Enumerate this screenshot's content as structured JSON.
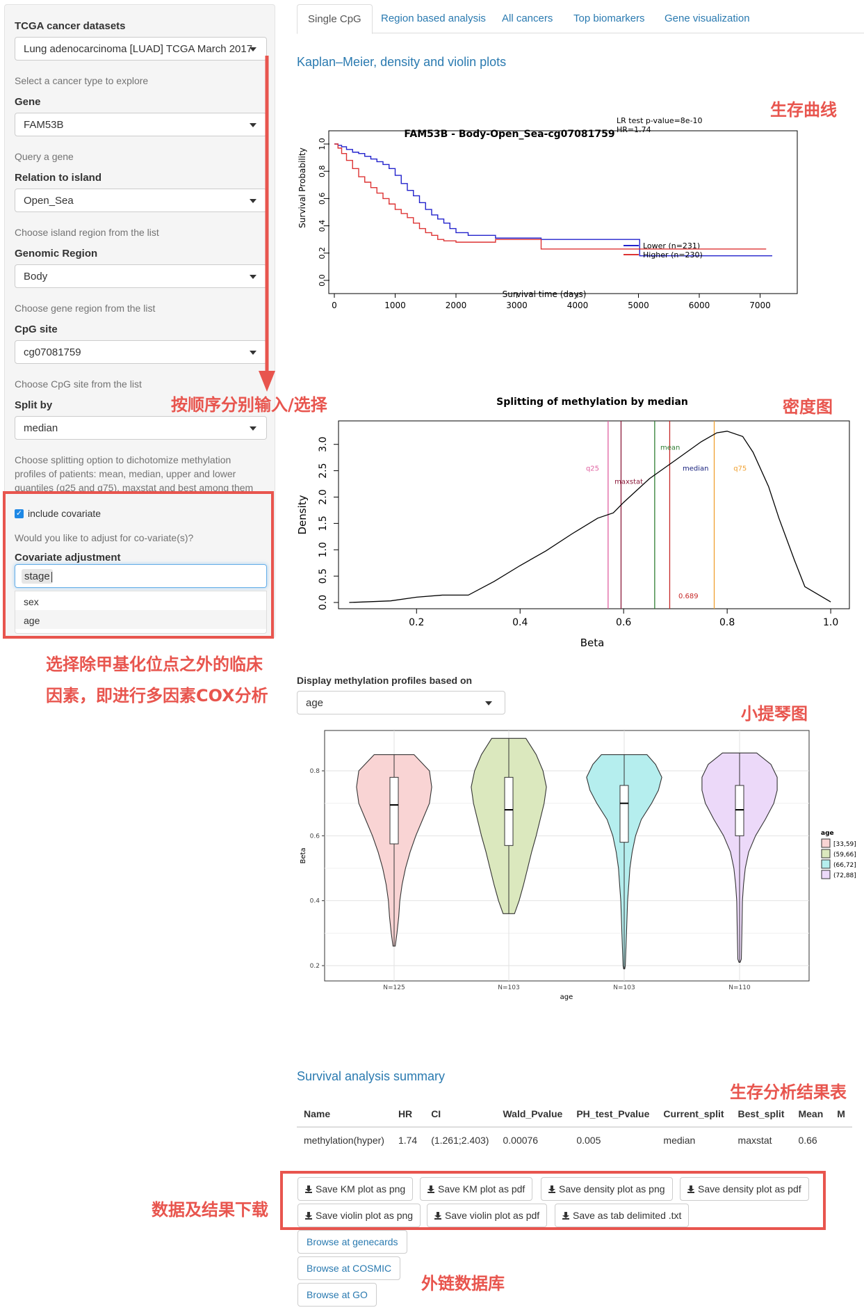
{
  "sidebar": {
    "dataset_label": "TCGA cancer datasets",
    "dataset_value": "Lung adenocarcinoma [LUAD] TCGA March 2017",
    "dataset_help": "Select a cancer type to explore",
    "gene_label": "Gene",
    "gene_value": "FAM53B",
    "gene_help": "Query a gene",
    "island_label": "Relation to island",
    "island_value": "Open_Sea",
    "island_help": "Choose island region from the list",
    "region_label": "Genomic Region",
    "region_value": "Body",
    "region_help": "Choose gene region from the list",
    "cpg_label": "CpG site",
    "cpg_value": "cg07081759",
    "cpg_help": "Choose CpG site from the list",
    "split_label": "Split by",
    "split_value": "median",
    "split_help": "Choose splitting option to dichotomize methylation profiles of patients: mean, median, upper and lower quantiles (q25 and q75), maxstat and best among them",
    "covariate_checkbox": "include covariate",
    "covariate_checked": true,
    "covariate_help": "Would you like to adjust for co-variate(s)?",
    "covariate_label": "Covariate adjustment",
    "covariate_chip": "stage",
    "covariate_options": [
      "sex",
      "age"
    ]
  },
  "annotations": {
    "sequence": "按顺序分别输入/选择",
    "clinical_line1": "选择除甲基化位点之外的临床",
    "clinical_line2": "因素，即进行多因素COX分析",
    "survival_curve": "生存曲线",
    "density": "密度图",
    "violin": "小提琴图",
    "summary_table": "生存分析结果表",
    "downloads": "数据及结果下载",
    "external_db": "外链数据库"
  },
  "tabs": [
    "Single CpG",
    "Region based analysis",
    "All cancers",
    "Top biomarkers",
    "Gene visualization"
  ],
  "main": {
    "heading": "Kaplan–Meier, density and violin plots",
    "violin_select_label": "Display methylation profiles based on",
    "violin_select_value": "age",
    "summary_heading": "Survival analysis summary"
  },
  "chart_data": [
    {
      "type": "line",
      "title": "FAM53B - Body-Open_Sea-cg07081759",
      "xlabel": "Survival time (days)",
      "ylabel": "Survival Probability",
      "xlim": [
        0,
        7200
      ],
      "ylim": [
        0,
        1
      ],
      "xticks": [
        "0",
        "1000",
        "2000",
        "3000",
        "4000",
        "5000",
        "6000",
        "7000"
      ],
      "yticks": [
        "0.0",
        "0.2",
        "0.4",
        "0.6",
        "0.8",
        "1.0"
      ],
      "annotation_line1": "LR test p-value=8e-10",
      "annotation_line2": "HR=1.74",
      "legend_position": "bottom-right",
      "series": [
        {
          "name": "Lower (n=231)",
          "color": "#2222cc",
          "x": [
            0,
            60,
            120,
            200,
            300,
            400,
            500,
            600,
            700,
            800,
            900,
            1000,
            1100,
            1200,
            1300,
            1400,
            1500,
            1600,
            1700,
            1800,
            1900,
            2000,
            2200,
            2400,
            2600,
            2650,
            3000,
            3200,
            3350,
            3400,
            5000,
            5020,
            7200
          ],
          "y": [
            1.0,
            0.99,
            0.98,
            0.96,
            0.94,
            0.93,
            0.91,
            0.89,
            0.87,
            0.85,
            0.82,
            0.77,
            0.71,
            0.66,
            0.62,
            0.57,
            0.52,
            0.48,
            0.45,
            0.42,
            0.38,
            0.35,
            0.33,
            0.33,
            0.33,
            0.31,
            0.31,
            0.31,
            0.31,
            0.3,
            0.3,
            0.18,
            0.18
          ]
        },
        {
          "name": "Higher (n=230)",
          "color": "#dd3333",
          "x": [
            0,
            60,
            120,
            200,
            300,
            400,
            500,
            600,
            700,
            800,
            900,
            1000,
            1100,
            1200,
            1300,
            1400,
            1500,
            1600,
            1700,
            1800,
            2000,
            2200,
            2400,
            2600,
            2650,
            3000,
            3200,
            3350,
            3400,
            5000,
            7100
          ],
          "y": [
            1.0,
            0.97,
            0.93,
            0.88,
            0.82,
            0.76,
            0.72,
            0.68,
            0.64,
            0.6,
            0.56,
            0.52,
            0.49,
            0.46,
            0.42,
            0.38,
            0.35,
            0.33,
            0.3,
            0.29,
            0.28,
            0.28,
            0.28,
            0.28,
            0.3,
            0.3,
            0.3,
            0.3,
            0.23,
            0.23,
            0.23
          ]
        }
      ]
    },
    {
      "type": "line",
      "title": "Splitting of methylation by median",
      "xlabel": "Beta",
      "ylabel": "Density",
      "xlim": [
        0.05,
        1.05
      ],
      "ylim": [
        0,
        3.3
      ],
      "xticks": [
        "0.2",
        "0.4",
        "0.6",
        "0.8",
        "1.0"
      ],
      "yticks": [
        "0.0",
        "0.5",
        "1.0",
        "1.5",
        "2.0",
        "2.5",
        "3.0"
      ],
      "series": [
        {
          "name": "",
          "x": [
            0.07,
            0.1,
            0.15,
            0.2,
            0.25,
            0.3,
            0.35,
            0.4,
            0.45,
            0.5,
            0.55,
            0.58,
            0.6,
            0.65,
            0.7,
            0.75,
            0.78,
            0.8,
            0.83,
            0.85,
            0.88,
            0.9,
            0.93,
            0.95,
            1.0
          ],
          "y": [
            0,
            0.01,
            0.03,
            0.1,
            0.14,
            0.14,
            0.4,
            0.7,
            0.98,
            1.3,
            1.6,
            1.7,
            1.9,
            2.35,
            2.7,
            3.05,
            3.22,
            3.25,
            3.15,
            2.85,
            2.2,
            1.6,
            0.8,
            0.3,
            0.01
          ]
        }
      ],
      "vlines": [
        {
          "label": "q25",
          "x": 0.57,
          "color": "#e060a0"
        },
        {
          "label": "maxstat",
          "x": 0.595,
          "color": "#8b1a3a"
        },
        {
          "label": "mean",
          "x": 0.66,
          "color": "#2e7d32"
        },
        {
          "label": "median",
          "x": 0.689,
          "color": "#c62828"
        },
        {
          "label": "q75",
          "x": 0.775,
          "color": "#f0a030"
        }
      ],
      "median_value_label": "0.689"
    },
    {
      "type": "violin",
      "xlabel": "age",
      "ylabel": "Beta",
      "ylim": [
        0.18,
        0.92
      ],
      "yticks": [
        "0.2",
        "0.4",
        "0.6",
        "0.8"
      ],
      "legend_title": "age",
      "legend_position": "right",
      "categories": [
        "[33,59]",
        "(59,66]",
        "(66,72]",
        "(72,88]"
      ],
      "counts": [
        "N=125",
        "N=103",
        "N=103",
        "N=110"
      ],
      "colors": [
        "#f9d4d4",
        "#dbe8be",
        "#b5eeee",
        "#ecd9f9"
      ],
      "series": [
        {
          "name": "[33,59]",
          "min": 0.26,
          "q1": 0.575,
          "median": 0.695,
          "q3": 0.78,
          "max": 0.85
        },
        {
          "name": "(59,66]",
          "min": 0.36,
          "q1": 0.57,
          "median": 0.68,
          "q3": 0.78,
          "max": 0.9
        },
        {
          "name": "(66,72]",
          "min": 0.19,
          "q1": 0.58,
          "median": 0.7,
          "q3": 0.755,
          "max": 0.85
        },
        {
          "name": "(72,88]",
          "min": 0.21,
          "q1": 0.6,
          "median": 0.68,
          "q3": 0.755,
          "max": 0.855
        }
      ]
    },
    {
      "type": "table",
      "columns": [
        "Name",
        "HR",
        "CI",
        "Wald_Pvalue",
        "PH_test_Pvalue",
        "Current_split",
        "Best_split",
        "Mean",
        "M"
      ],
      "rows": [
        [
          "methylation(hyper)",
          "1.74",
          "(1.261;2.403)",
          "0.00076",
          "0.005",
          "median",
          "maxstat",
          "0.66",
          ""
        ]
      ]
    }
  ],
  "downloads": [
    "Save KM plot as png",
    "Save KM plot as pdf",
    "Save density plot as png",
    "Save density plot as pdf",
    "Save violin plot as png",
    "Save violin plot as pdf",
    "Save as tab delimited .txt"
  ],
  "links": [
    "Browse at genecards",
    "Browse at COSMIC",
    "Browse at GO"
  ]
}
